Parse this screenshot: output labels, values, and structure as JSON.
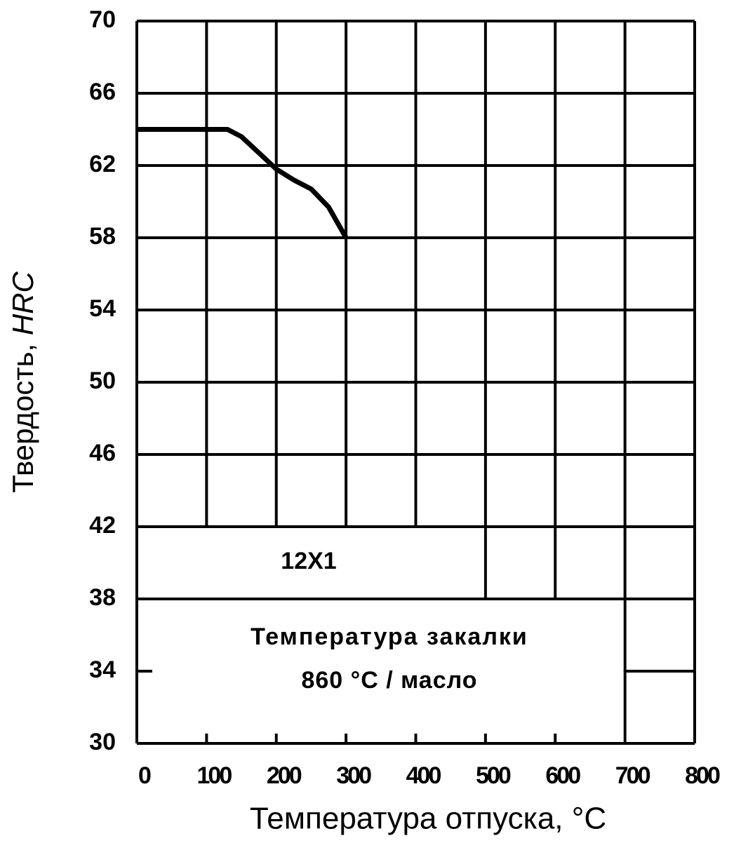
{
  "chart_data": {
    "type": "line",
    "xlabel": "Температура отпуска, °C",
    "ylabel": "Твердость,",
    "ylabel_unit": "HRC",
    "x": [
      0,
      100,
      130,
      150,
      175,
      200,
      225,
      250,
      275,
      300
    ],
    "series": [
      {
        "name": "12X1",
        "color": "#000000",
        "values": [
          64,
          64,
          64,
          63.6,
          62.7,
          61.8,
          61.2,
          60.7,
          59.7,
          58
        ]
      }
    ],
    "xlim": [
      0,
      800
    ],
    "xticks": [
      0,
      100,
      200,
      300,
      400,
      500,
      600,
      700,
      800
    ],
    "ylim": [
      30,
      70
    ],
    "yticks": [
      30,
      34,
      38,
      42,
      46,
      50,
      54,
      58,
      62,
      66,
      70
    ],
    "grid": true,
    "annotations": [
      "Температура закалки",
      "860 °C / масло"
    ]
  }
}
